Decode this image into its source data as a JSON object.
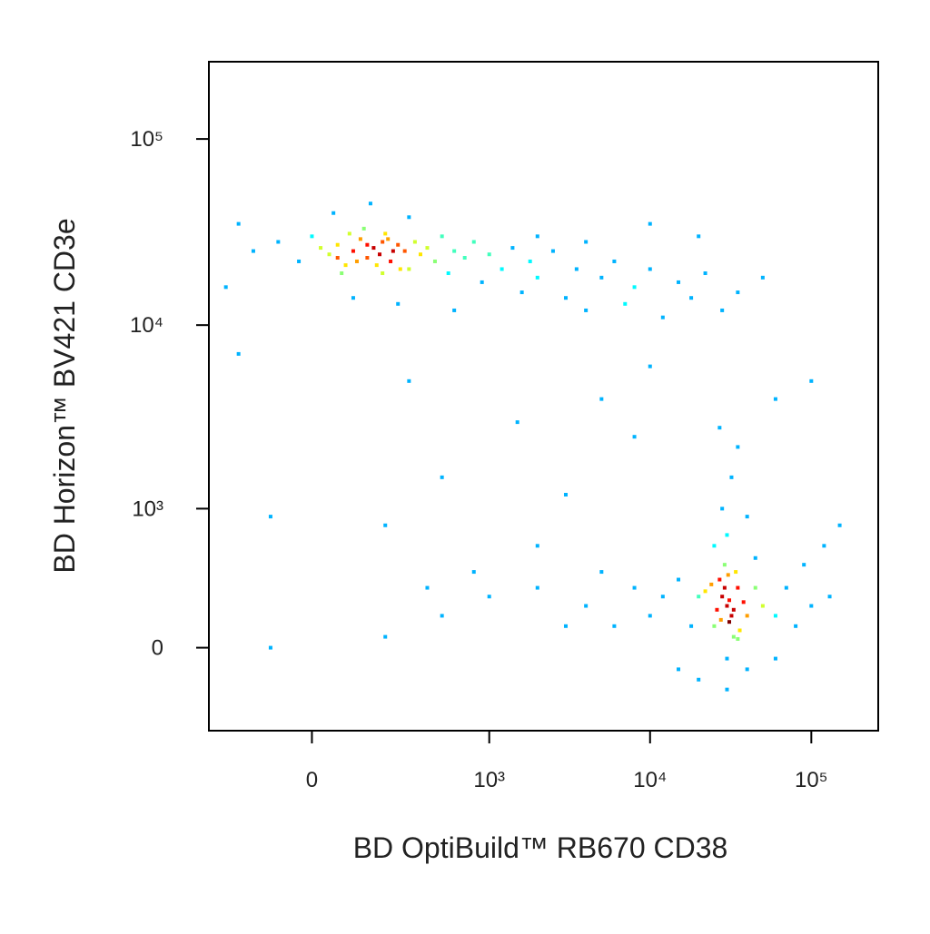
{
  "chart_data": {
    "type": "scatter",
    "x_label": "BD OptiBuild™ RB670 CD38",
    "y_label": "BD Horizon™ BV421 CD3e",
    "xscale": "biexponential",
    "yscale": "biexponential",
    "xlim": [
      -330,
      260000
    ],
    "ylim": [
      -450,
      260000
    ],
    "xticks": [
      0,
      {
        "value": 1000,
        "label": "10³"
      },
      {
        "value": 10000,
        "label": "10⁴"
      },
      {
        "value": 100000,
        "label": "10⁵"
      }
    ],
    "yticks": [
      0,
      {
        "value": 1000,
        "label": "10³"
      },
      {
        "value": 10000,
        "label": "10⁴"
      },
      {
        "value": 100000,
        "label": "10⁵"
      }
    ],
    "x": [
      -150,
      -80,
      -30,
      0,
      20,
      40,
      60,
      80,
      100,
      120,
      140,
      160,
      180,
      200,
      220,
      250,
      280,
      300,
      330,
      360,
      400,
      450,
      500,
      550,
      600,
      700,
      800,
      900,
      1000,
      1200,
      1400,
      1600,
      1800,
      2000,
      2500,
      3000,
      3500,
      4000,
      5000,
      6000,
      7000,
      8000,
      10000,
      12000,
      15000,
      18000,
      22000,
      28000,
      35000,
      50000,
      -250,
      -200,
      50,
      150,
      300,
      100,
      250,
      600,
      2000,
      4000,
      10000,
      20000,
      70,
      130,
      190,
      90,
      210,
      170,
      230,
      110,
      60,
      140,
      190,
      260,
      -200,
      300,
      1500,
      5000,
      10000,
      500,
      3000,
      200,
      -100,
      800,
      2000,
      8000,
      60000,
      100000,
      150000,
      400,
      30000,
      28000,
      32000,
      35000,
      25000,
      27000,
      33000,
      38000,
      22000,
      30000,
      29000,
      31000,
      26000,
      34000,
      36000,
      24000,
      40000,
      20000,
      45000,
      18000,
      50000,
      15000,
      60000,
      12000,
      70000,
      10000,
      80000,
      8000,
      100000,
      6000,
      130000,
      5000,
      4000,
      3000,
      2000,
      1000,
      500,
      200,
      -100,
      30000,
      28000,
      32000,
      35000,
      27000,
      40000,
      25000,
      45000,
      30000,
      20000,
      40000,
      60000,
      15000,
      90000,
      120000,
      35000,
      29000,
      31000,
      33000,
      27500,
      30500
    ],
    "values": [
      25000,
      28000,
      22000,
      30000,
      26000,
      24000,
      27000,
      21000,
      25000,
      29000,
      23000,
      26000,
      24000,
      31000,
      22000,
      27000,
      25000,
      20000,
      28000,
      24000,
      26000,
      22000,
      30000,
      19000,
      25000,
      23000,
      28000,
      17000,
      24000,
      20000,
      26000,
      15000,
      22000,
      18000,
      25000,
      14000,
      20000,
      12000,
      18000,
      22000,
      13000,
      16000,
      20000,
      11000,
      17000,
      14000,
      19000,
      12000,
      15000,
      18000,
      16000,
      35000,
      40000,
      45000,
      38000,
      14000,
      13000,
      12000,
      30000,
      28000,
      35000,
      30000,
      19000,
      33000,
      19000,
      31000,
      29000,
      21000,
      25000,
      22000,
      23000,
      27000,
      28000,
      20000,
      7000,
      5000,
      3000,
      4000,
      6000,
      1500,
      1200,
      800,
      900,
      400,
      600,
      2500,
      4000,
      5000,
      800,
      300,
      200,
      250,
      150,
      300,
      100,
      350,
      50,
      220,
      280,
      -50,
      450,
      120,
      180,
      400,
      80,
      320,
      150,
      250,
      300,
      100,
      200,
      350,
      150,
      250,
      300,
      150,
      100,
      300,
      200,
      100,
      250,
      400,
      200,
      100,
      300,
      250,
      150,
      50,
      0,
      700,
      1000,
      1500,
      2200,
      2800,
      900,
      600,
      500,
      -200,
      -150,
      -100,
      -50,
      -100,
      450,
      600,
      40,
      300,
      230,
      180,
      130,
      380
    ]
  }
}
